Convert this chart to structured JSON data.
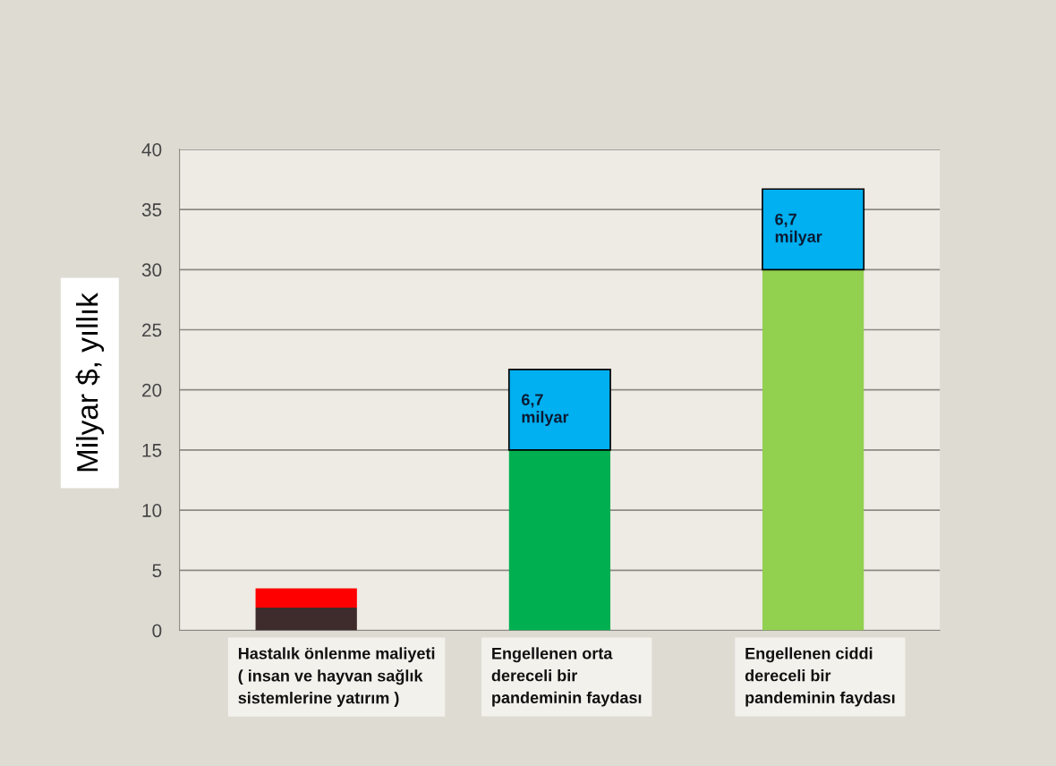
{
  "chart_data": {
    "type": "bar",
    "stacked": true,
    "ylabel": "Milyar $, yıllık",
    "categories": [
      "Hastalık önlenme maliyeti\n( insan ve hayvan sağlık\nsistemlerine yatırım )",
      "Engellenen orta\ndereceli bir\npandeminin faydası",
      "Engellenen ciddi\ndereceli bir\npandeminin faydası"
    ],
    "series": [
      {
        "colors": [
          "#3e2b2b",
          "#00b050",
          "#92d050"
        ],
        "values": [
          1.9,
          15,
          30
        ]
      },
      {
        "colors": [
          "#ff0000",
          "#00b0f0",
          "#00b0f0"
        ],
        "values": [
          1.6,
          6.7,
          6.7
        ],
        "value_labels": [
          null,
          "6,7\nmilyar",
          "6,7\nmilyar"
        ]
      }
    ],
    "ylim": [
      0,
      40
    ],
    "yticks": [
      0,
      5,
      10,
      15,
      20,
      25,
      30,
      35,
      40
    ],
    "grid": "y"
  }
}
